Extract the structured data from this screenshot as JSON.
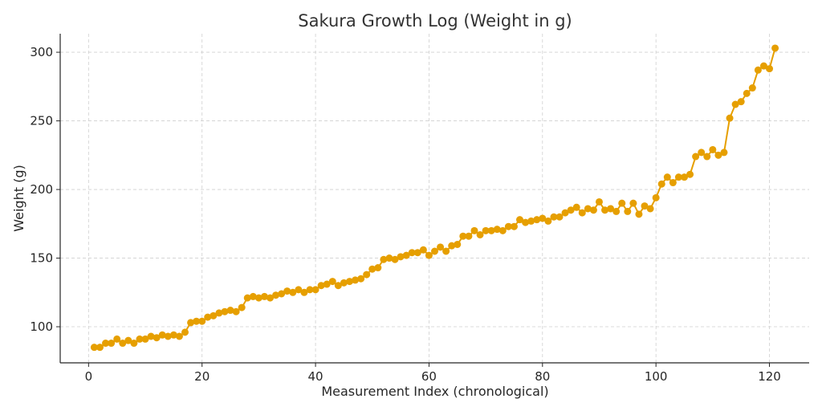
{
  "chart_data": {
    "type": "line",
    "title": "Sakura Growth Log (Weight in g)",
    "xlabel": "Measurement Index (chronological)",
    "ylabel": "Weight (g)",
    "xlim": [
      -5,
      127
    ],
    "ylim": [
      73.7,
      313.5
    ],
    "xticks": [
      0,
      20,
      40,
      60,
      80,
      100,
      120
    ],
    "yticks": [
      100,
      150,
      200,
      250,
      300
    ],
    "grid": true,
    "color": "#E69F00",
    "series": [
      {
        "name": "Weight",
        "x_start": 1,
        "values": [
          85,
          85,
          88,
          88,
          91,
          88,
          90,
          88,
          91,
          91,
          93,
          92,
          94,
          93,
          94,
          93,
          96,
          103,
          104,
          104,
          107,
          108,
          110,
          111,
          112,
          111,
          114,
          121,
          122,
          121,
          122,
          121,
          123,
          124,
          126,
          125,
          127,
          125,
          127,
          127,
          130,
          131,
          133,
          130,
          132,
          133,
          134,
          135,
          138,
          142,
          143,
          149,
          150,
          149,
          151,
          152,
          154,
          154,
          156,
          152,
          155,
          158,
          155,
          159,
          160,
          166,
          166,
          170,
          167,
          170,
          170,
          171,
          170,
          173,
          173,
          178,
          176,
          177,
          178,
          179,
          177,
          180,
          180,
          183,
          185,
          187,
          183,
          186,
          185,
          191,
          185,
          186,
          184,
          190,
          184,
          190,
          182,
          188,
          186,
          194,
          204,
          209,
          205,
          209,
          209,
          211,
          224,
          227,
          224,
          229,
          225,
          227,
          252,
          262,
          264,
          270,
          274,
          287,
          290,
          288,
          303
        ]
      }
    ]
  }
}
